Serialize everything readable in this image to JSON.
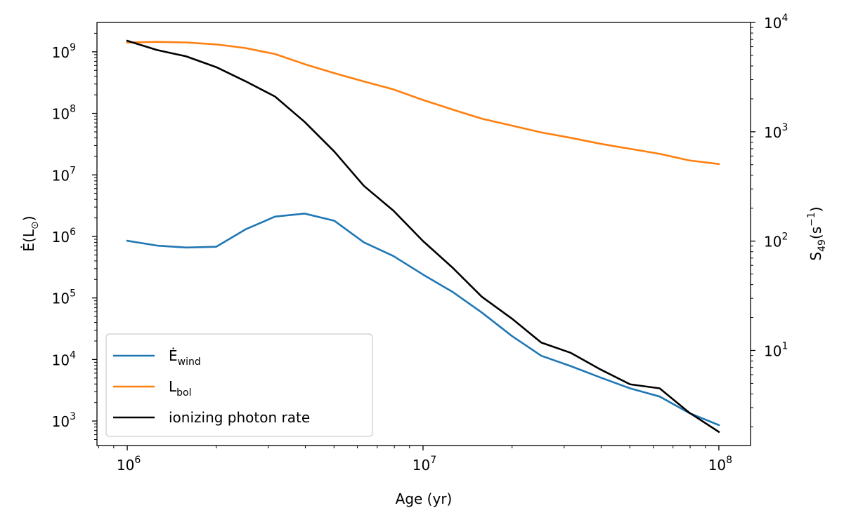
{
  "chart_data": {
    "type": "line",
    "title": "",
    "x_scale": "log",
    "y_left_scale": "log",
    "y_right_scale": "log",
    "xlim": [
      790000,
      128000000
    ],
    "ylim_left": [
      400,
      3000000000
    ],
    "ylim_right": [
      1.35,
      10000
    ],
    "x": [
      1000000,
      1260000,
      1580000,
      2000000,
      2510000,
      3160000,
      3980000,
      5010000,
      6310000,
      7940000,
      10000000,
      12600000,
      15800000,
      20000000,
      25100000,
      31600000,
      39800000,
      50100000,
      63100000,
      79400000,
      100000000
    ],
    "series": [
      {
        "name": "Ė_wind",
        "axis": "left",
        "color": "#1f77b4",
        "values": [
          850000,
          710000,
          660000,
          680000,
          1300000,
          2100000,
          2350000,
          1800000,
          800000,
          480000,
          240000,
          125000,
          58000,
          24000,
          11500,
          7800,
          5100,
          3400,
          2500,
          1350,
          860
        ]
      },
      {
        "name": "L_bol",
        "axis": "left",
        "color": "#ff7f0e",
        "values": [
          1420000000,
          1450000000,
          1420000000,
          1320000000,
          1150000000,
          920000000,
          630000000,
          450000000,
          330000000,
          245000000,
          165000000,
          115000000,
          82000000,
          63000000,
          49000000,
          40000000,
          32000000,
          26500000,
          22000000,
          17200000,
          15000000
        ]
      },
      {
        "name": "ionizing photon rate",
        "axis": "right",
        "color": "#000000",
        "values": [
          6800,
          5600,
          4900,
          3900,
          2900,
          2100,
          1230,
          660,
          320,
          190,
          100,
          57,
          31,
          19.5,
          11.8,
          9.5,
          6.7,
          4.9,
          4.5,
          2.7,
          1.8
        ]
      }
    ],
    "x_ticks": [
      {
        "value": 1000000,
        "base": "10",
        "exp": "6"
      },
      {
        "value": 10000000,
        "base": "10",
        "exp": "7"
      },
      {
        "value": 100000000,
        "base": "10",
        "exp": "8"
      }
    ],
    "y_left_ticks": [
      {
        "value": 1000,
        "base": "10",
        "exp": "3"
      },
      {
        "value": 10000,
        "base": "10",
        "exp": "4"
      },
      {
        "value": 100000,
        "base": "10",
        "exp": "5"
      },
      {
        "value": 1000000,
        "base": "10",
        "exp": "6"
      },
      {
        "value": 10000000,
        "base": "10",
        "exp": "7"
      },
      {
        "value": 100000000,
        "base": "10",
        "exp": "8"
      },
      {
        "value": 1000000000,
        "base": "10",
        "exp": "9"
      }
    ],
    "y_right_ticks": [
      {
        "value": 10,
        "base": "10",
        "exp": "1"
      },
      {
        "value": 100,
        "base": "10",
        "exp": "2"
      },
      {
        "value": 1000,
        "base": "10",
        "exp": "3"
      },
      {
        "value": 10000,
        "base": "10",
        "exp": "4"
      }
    ],
    "xlabel": "Age (yr)",
    "ylabel_left": {
      "main": "Ė(L",
      "sub": "⊙",
      "close": ")"
    },
    "ylabel_right": {
      "main": "S",
      "sub": "49",
      "open": "(s",
      "sup": "−1",
      "close": ")"
    },
    "legend": {
      "position": "lower-left",
      "entries": [
        {
          "main": "Ė",
          "sub": "wind",
          "color": "#1f77b4"
        },
        {
          "main": "L",
          "sub": "bol",
          "color": "#ff7f0e"
        },
        {
          "main": "ionizing photon rate",
          "sub": "",
          "color": "#000000"
        }
      ]
    },
    "grid": false
  }
}
